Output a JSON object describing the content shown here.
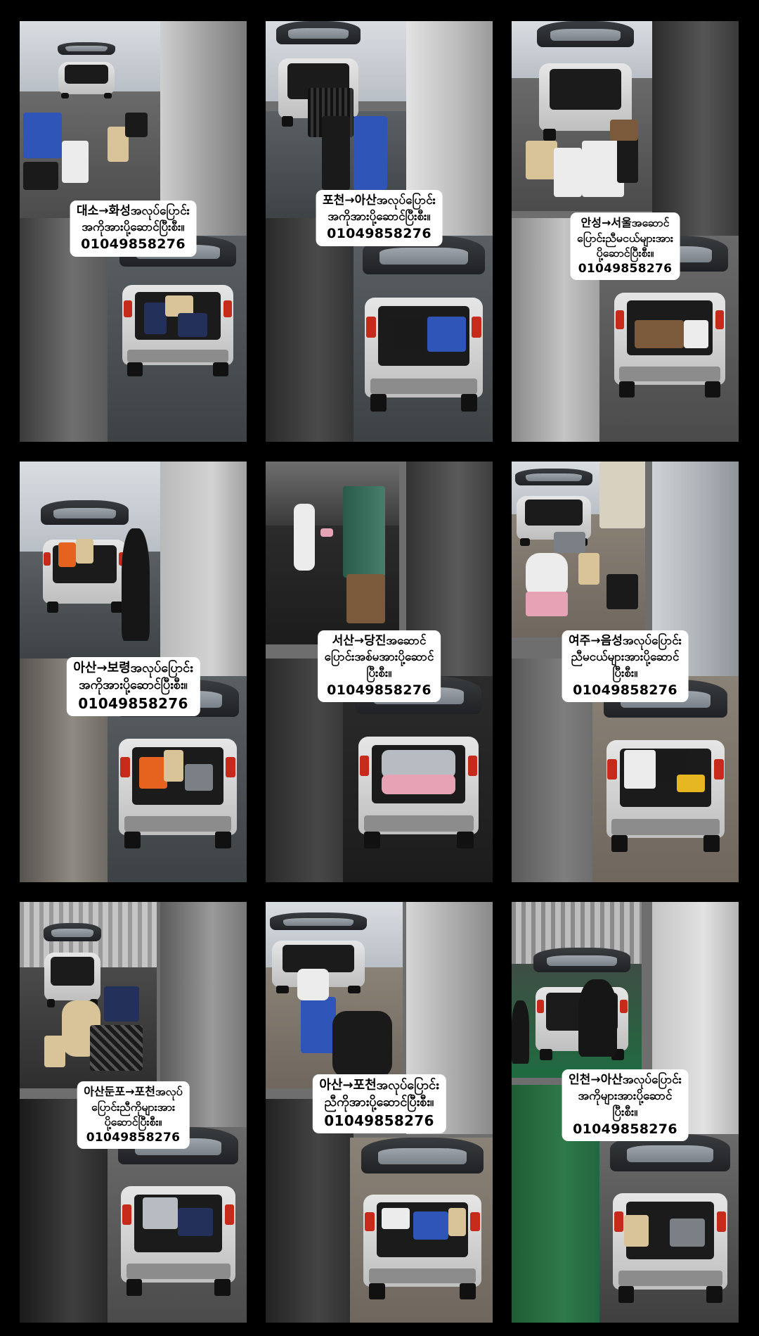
{
  "tiles": [
    {
      "lines": [
        "대소→화성အလုပ်ပြောင်း",
        "အကိုအားပို့ဆောင်ပြီးစီး။"
      ],
      "phone": "01049858276"
    },
    {
      "lines": [
        "포천→아산အလုပ်ပြောင်း",
        "အကိုအားပို့ဆောင်ပြီးစီး။"
      ],
      "phone": "01049858276"
    },
    {
      "lines": [
        "안성→서울အဆောင်",
        "ပြောင်းညီမငယ်များအား",
        "ပို့ဆောင်ပြီးစီး။"
      ],
      "phone": "01049858276"
    },
    {
      "lines": [
        "아산→보령အလုပ်ပြောင်း",
        "အကိုအားပို့ဆောင်ပြီးစီး။"
      ],
      "phone": "01049858276"
    },
    {
      "lines": [
        "서산→당진အဆောင်",
        "ပြောင်းအစ်မအားပို့ဆောင်",
        "ပြီးစီး။"
      ],
      "phone": "01049858276"
    },
    {
      "lines": [
        "여주→음성အလုပ်ပြောင်း",
        "ညီမငယ်များအားပို့ဆောင်",
        "ပြီးစီး။"
      ],
      "phone": "01049858276"
    },
    {
      "lines": [
        "아산둔포→포천အလုပ်",
        "ပြောင်းညီကိုများအား",
        "ပို့ဆောင်ပြီးစီး။"
      ],
      "phone": "01049858276"
    },
    {
      "lines": [
        "아산→포천အလုပ်ပြောင်း",
        "ညီကိုအားပို့ဆောင်ပြီးစီး။"
      ],
      "phone": "01049858276"
    },
    {
      "lines": [
        "인천→아산အလုပ်ပြောင်း",
        "အကိုများအားပို့ဆောင်",
        "ပြီးစီး။"
      ],
      "phone": "01049858276"
    }
  ]
}
